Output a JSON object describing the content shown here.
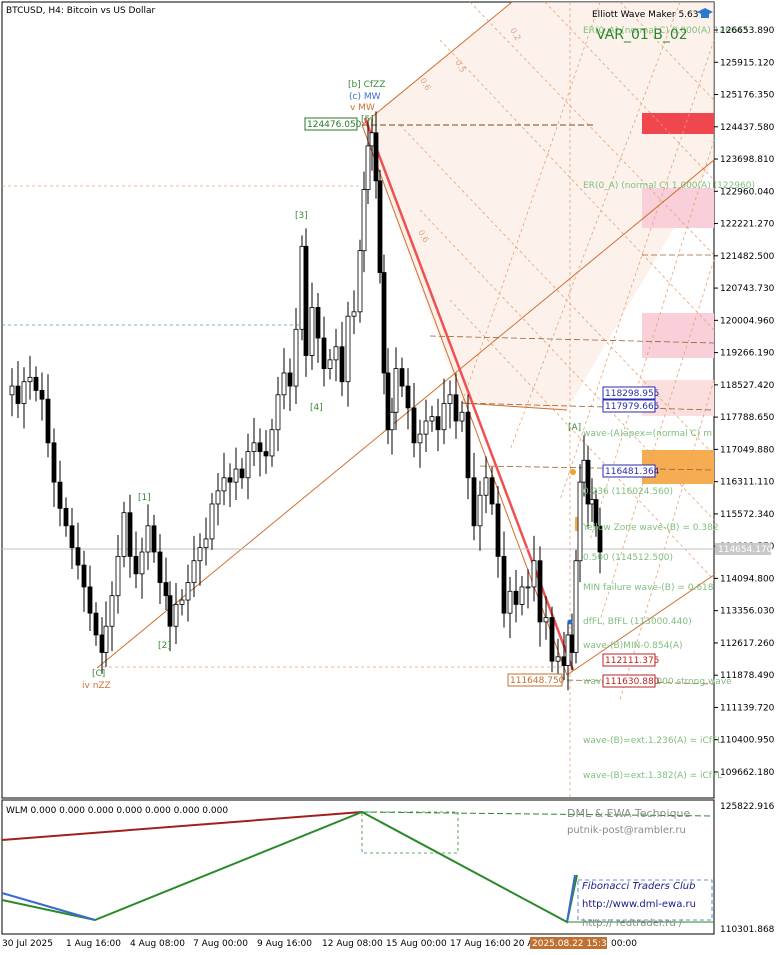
{
  "header": {
    "symbol": "BTCUSD, H4:  Bitcoin vs US Dollar",
    "ewm_title": "Elliott Wave Maker 5.63",
    "var_label": "VAR_01 B_02"
  },
  "price_axis": {
    "ticks": [
      "126653.890",
      "125915.120",
      "125176.350",
      "124437.580",
      "123698.810",
      "122960.040",
      "122221.270",
      "121482.500",
      "120743.730",
      "120004.960",
      "119266.190",
      "118527.420",
      "117788.650",
      "117049.880",
      "116311.110",
      "115572.340",
      "114833.570",
      "114094.800",
      "113356.030",
      "112617.260",
      "111878.490",
      "111139.720",
      "110400.950",
      "109662.180"
    ],
    "current_price": "114654.170"
  },
  "time_axis": {
    "ticks": [
      "30 Jul 2025",
      "1 Aug 16:00",
      "4 Aug 08:00",
      "7 Aug 00:00",
      "9 Aug 16:00",
      "12 Aug 08:00",
      "15 Aug 00:00",
      "17 Aug 16:00",
      "20 A"
    ],
    "cursor_time": "2025.08.22 15:34",
    "tail": "00:00"
  },
  "price_boxes": {
    "p_high": "124476.050",
    "p_low": "111648.750",
    "p1": "118298.955",
    "p2": "117979.665",
    "p3": "116481.364",
    "p4": "112111.375",
    "p5": "111630.880"
  },
  "wave_labels": {
    "b_cfzz": "[b] CfZZ",
    "c_mw": "(c) MW",
    "v_mw": "v MW",
    "five": "[5]",
    "three": "[3]",
    "four": "[4]",
    "one": "[1]",
    "two": "[2]",
    "c_low": "[C]",
    "iv_nzz": "iv nZZ",
    "a_top": "[A]"
  },
  "level_labels": [
    "ER(0_A) (normal C) 0,000(A) 126643",
    "ER(0_A) (normal C) 1,000(A) (122960)",
    "wave-(A)apex=(normal C) m",
    "0.236 (116024.560)",
    "Yellow Zone wave-(B) = 0.382",
    "0.500 (114512.500)",
    "MIN failure wave-(B) = 0.618",
    "dfFL, BfFL (113000.440)",
    "wave-(B)MIN-0.854(A)",
    "wave-(B)=ext.1.000 strong wave",
    "wave-(B)=ext.1.236(A) = iCfFL",
    "wave-(B)=ext.1.382(A) = iCfFL"
  ],
  "fan_labels": [
    "0.2",
    "0.5",
    "0.6",
    "0.6"
  ],
  "indicator": {
    "title": "WLM 0.000 0.000 0.000 0.000 0.000 0.000 0.000",
    "axis_high": "125822.916",
    "axis_low": "110301.868",
    "brand1": "DML & EWA Technique",
    "brand2": "putnik-post@rambler.ru",
    "club": "Fibonacci  Traders  Club",
    "url1": "http://www.dml-ewa.ru",
    "url2": "http://  redtrader.ru /"
  },
  "chart_data": {
    "type": "candlestick",
    "symbol": "BTCUSD",
    "timeframe": "H4",
    "y_range": [
      109300,
      127200
    ],
    "x_ticks": [
      "30 Jul 2025",
      "1 Aug 16:00",
      "4 Aug 08:00",
      "7 Aug 00:00",
      "9 Aug 16:00",
      "12 Aug 08:00",
      "15 Aug 00:00",
      "17 Aug 16:00",
      "20 A"
    ],
    "close_path": [
      [
        0,
        118300
      ],
      [
        6,
        118500
      ],
      [
        12,
        118100
      ],
      [
        18,
        118600
      ],
      [
        24,
        118700
      ],
      [
        30,
        118400
      ],
      [
        36,
        118200
      ],
      [
        42,
        117200
      ],
      [
        48,
        116300
      ],
      [
        54,
        115700
      ],
      [
        60,
        115300
      ],
      [
        66,
        114800
      ],
      [
        72,
        114400
      ],
      [
        78,
        113900
      ],
      [
        84,
        113300
      ],
      [
        90,
        112800
      ],
      [
        96,
        112400
      ],
      [
        100,
        113000
      ],
      [
        106,
        113700
      ],
      [
        112,
        114600
      ],
      [
        118,
        115600
      ],
      [
        124,
        114600
      ],
      [
        130,
        114200
      ],
      [
        136,
        114700
      ],
      [
        142,
        115300
      ],
      [
        148,
        114700
      ],
      [
        154,
        114000
      ],
      [
        160,
        113700
      ],
      [
        164,
        113000
      ],
      [
        170,
        113500
      ],
      [
        176,
        113600
      ],
      [
        182,
        114000
      ],
      [
        188,
        114500
      ],
      [
        194,
        114800
      ],
      [
        200,
        115000
      ],
      [
        206,
        115800
      ],
      [
        212,
        116100
      ],
      [
        218,
        116400
      ],
      [
        224,
        116300
      ],
      [
        230,
        116600
      ],
      [
        236,
        116400
      ],
      [
        242,
        117000
      ],
      [
        248,
        117200
      ],
      [
        254,
        117000
      ],
      [
        260,
        116900
      ],
      [
        266,
        117500
      ],
      [
        272,
        118300
      ],
      [
        278,
        118800
      ],
      [
        284,
        118500
      ],
      [
        290,
        119800
      ],
      [
        296,
        121700
      ],
      [
        300,
        119200
      ],
      [
        306,
        120300
      ],
      [
        312,
        119600
      ],
      [
        318,
        118900
      ],
      [
        324,
        119100
      ],
      [
        330,
        119400
      ],
      [
        336,
        118600
      ],
      [
        342,
        120100
      ],
      [
        348,
        120200
      ],
      [
        354,
        121600
      ],
      [
        358,
        123000
      ],
      [
        362,
        124000
      ],
      [
        366,
        124300
      ],
      [
        370,
        123200
      ],
      [
        374,
        121100
      ],
      [
        378,
        118800
      ],
      [
        382,
        117500
      ],
      [
        386,
        117900
      ],
      [
        390,
        118900
      ],
      [
        396,
        118500
      ],
      [
        402,
        118000
      ],
      [
        408,
        117200
      ],
      [
        414,
        117400
      ],
      [
        420,
        117700
      ],
      [
        426,
        117800
      ],
      [
        432,
        117500
      ],
      [
        438,
        118100
      ],
      [
        444,
        118300
      ],
      [
        450,
        117700
      ],
      [
        456,
        117900
      ],
      [
        462,
        116400
      ],
      [
        468,
        115300
      ],
      [
        474,
        116000
      ],
      [
        480,
        116400
      ],
      [
        486,
        115800
      ],
      [
        492,
        114600
      ],
      [
        498,
        113300
      ],
      [
        504,
        113800
      ],
      [
        510,
        113500
      ],
      [
        516,
        113900
      ],
      [
        522,
        113900
      ],
      [
        528,
        114500
      ],
      [
        534,
        113100
      ],
      [
        540,
        113200
      ],
      [
        546,
        112200
      ],
      [
        552,
        112300
      ],
      [
        558,
        112100
      ],
      [
        562,
        112800
      ],
      [
        566,
        112400
      ],
      [
        570,
        114500
      ],
      [
        574,
        116300
      ],
      [
        578,
        116800
      ],
      [
        582,
        115800
      ],
      [
        586,
        115900
      ],
      [
        590,
        115300
      ],
      [
        594,
        114700
      ]
    ],
    "swing_points": [
      {
        "label": "[C] iv nZZ",
        "price": 111900
      },
      {
        "label": "[1]",
        "price": 115700
      },
      {
        "label": "[2]",
        "price": 113000
      },
      {
        "label": "[3]",
        "price": 122000
      },
      {
        "label": "[4]",
        "price": 118700
      },
      {
        "label": "[5] [b] CfZZ (c) MW v MW",
        "price": 124476.05
      },
      {
        "label": "low",
        "price": 111648.75
      },
      {
        "label": "[A]",
        "price": 117200
      }
    ]
  }
}
